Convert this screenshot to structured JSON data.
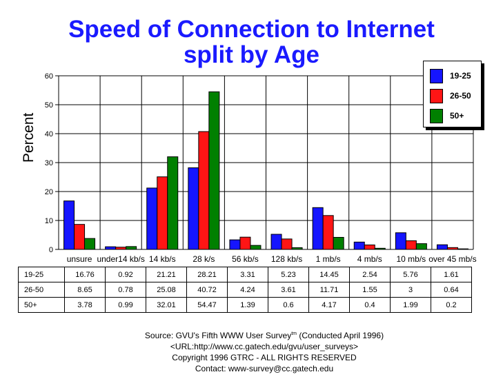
{
  "title_line1": "Speed of Connection to Internet",
  "title_line2": "split by Age",
  "chart_data": {
    "type": "bar",
    "title": "Speed of Connection to Internet split by Age",
    "ylabel": "Percent",
    "xlabel": "",
    "ylim": [
      0,
      60
    ],
    "yticks": [
      "0",
      "10",
      "20",
      "30",
      "40",
      "50",
      "60"
    ],
    "grid": true,
    "legend_position": "top-right",
    "categories": [
      "unsure",
      "under14 kb/s",
      "14 kb/s",
      "28 k/s",
      "56 kb/s",
      "128 kb/s",
      "1 mb/s",
      "4 mb/s",
      "10 mb/s",
      "over 45 mb/s"
    ],
    "series": [
      {
        "name": "19-25",
        "color": "#1515ff",
        "values": [
          16.76,
          0.92,
          21.21,
          28.21,
          3.31,
          5.23,
          14.45,
          2.54,
          5.76,
          1.61
        ],
        "labels": [
          "16.76",
          "0.92",
          "21.21",
          "28.21",
          "3.31",
          "5.23",
          "14.45",
          "2.54",
          "5.76",
          "1.61"
        ]
      },
      {
        "name": "26-50",
        "color": "#ff1515",
        "values": [
          8.65,
          0.78,
          25.08,
          40.72,
          4.24,
          3.61,
          11.71,
          1.55,
          3,
          0.64
        ],
        "labels": [
          "8.65",
          "0.78",
          "25.08",
          "40.72",
          "4.24",
          "3.61",
          "11.71",
          "1.55",
          "3",
          "0.64"
        ]
      },
      {
        "name": "50+",
        "color": "#008000",
        "values": [
          3.78,
          0.99,
          32.01,
          54.47,
          1.39,
          0.6,
          4.17,
          0.4,
          1.99,
          0.2
        ],
        "labels": [
          "3.78",
          "0.99",
          "32.01",
          "54.47",
          "1.39",
          "0.6",
          "4.17",
          "0.4",
          "1.99",
          "0.2"
        ]
      }
    ]
  },
  "source": {
    "line1a": "Source: GVU's Fifth WWW User Survey",
    "line1tm": "tm",
    "line1b": " (Conducted April 1996)",
    "line2": "<URL:http://www.cc.gatech.edu/gvu/user_surveys>",
    "line3": "Copyright 1996 GTRC -  ALL RIGHTS RESERVED",
    "line4": "Contact: www-survey@cc.gatech.edu"
  }
}
